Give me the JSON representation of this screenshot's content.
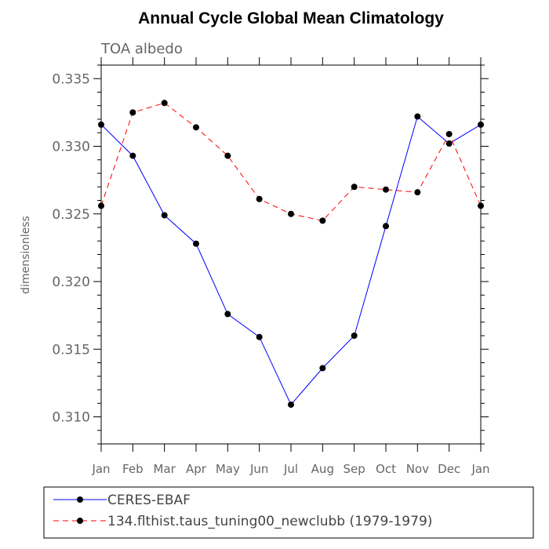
{
  "chart_data": {
    "type": "line",
    "title": "Annual Cycle Global Mean Climatology",
    "subtitle": "TOA albedo",
    "xlabel": "",
    "ylabel": "dimensionless",
    "categories": [
      "Jan",
      "Feb",
      "Mar",
      "Apr",
      "May",
      "Jun",
      "Jul",
      "Aug",
      "Sep",
      "Oct",
      "Nov",
      "Dec",
      "Jan"
    ],
    "ylim": [
      0.308,
      0.336
    ],
    "yticks": [
      "0.310",
      "0.315",
      "0.320",
      "0.325",
      "0.330",
      "0.335"
    ],
    "ytick_values": [
      0.31,
      0.315,
      0.32,
      0.325,
      0.33,
      0.335
    ],
    "legend_position": "bottom",
    "series": [
      {
        "name": "CERES-EBAF",
        "color": "#0000ff",
        "dash": "solid",
        "values": [
          0.3316,
          0.3293,
          0.3249,
          0.3228,
          0.3176,
          0.3159,
          0.3109,
          0.3136,
          0.316,
          0.3241,
          0.3322,
          0.3302,
          0.3316
        ]
      },
      {
        "name": "134.flthist.taus_tuning00_newclubb (1979-1979)",
        "color": "#ff0000",
        "dash": "dashed",
        "values": [
          0.3256,
          0.3325,
          0.3332,
          0.3314,
          0.3293,
          0.3261,
          0.325,
          0.3245,
          0.327,
          0.3268,
          0.3266,
          0.3309,
          0.3256
        ]
      }
    ]
  }
}
